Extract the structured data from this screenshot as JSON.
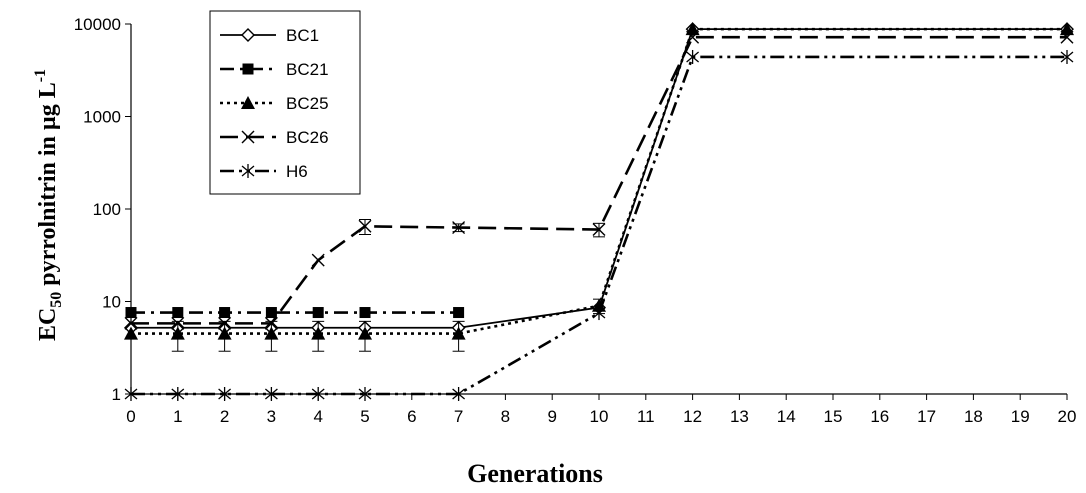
{
  "chart_data": {
    "type": "line",
    "xlabel": "Generations",
    "ylabel": {
      "main_pre": "EC",
      "sub": "50",
      "main_post": " pyrrolnitrin in µg  L",
      "sup": "-1"
    },
    "x_ticks": [
      "0",
      "1",
      "2",
      "3",
      "4",
      "5",
      "6",
      "7",
      "8",
      "9",
      "10",
      "11",
      "12",
      "13",
      "14",
      "15",
      "16",
      "17",
      "18",
      "19",
      "20"
    ],
    "y_scale": "log",
    "ylim": [
      1,
      10000
    ],
    "y_ticks": [
      "1",
      "10",
      "100",
      "1000",
      "10000"
    ],
    "grid": false,
    "legend_position": "top-left",
    "series": [
      {
        "name": "BC1",
        "marker": "diamond-open",
        "dash": "solid",
        "points": [
          {
            "x": 0,
            "y": 5.2
          },
          {
            "x": 1,
            "y": 5.2
          },
          {
            "x": 2,
            "y": 5.2
          },
          {
            "x": 3,
            "y": 5.2
          },
          {
            "x": 4,
            "y": 5.2
          },
          {
            "x": 5,
            "y": 5.2
          },
          {
            "x": 7,
            "y": 5.2
          },
          {
            "x": 10,
            "y": 8.6
          },
          {
            "x": 12,
            "y": 8800
          },
          {
            "x": 20,
            "y": 8800
          }
        ]
      },
      {
        "name": "BC21",
        "marker": "square",
        "dash": "dash-dot",
        "points": [
          {
            "x": 0,
            "y": 7.6
          },
          {
            "x": 1,
            "y": 7.6
          },
          {
            "x": 2,
            "y": 7.6
          },
          {
            "x": 3,
            "y": 7.6
          },
          {
            "x": 4,
            "y": 7.6
          },
          {
            "x": 5,
            "y": 7.6
          },
          {
            "x": 7,
            "y": 7.6
          }
        ]
      },
      {
        "name": "BC25",
        "marker": "triangle",
        "dash": "dotted",
        "error_y": [
          0,
          1.6,
          1.6,
          1.6,
          1.6,
          1.6,
          1.6,
          1.6,
          0,
          0
        ],
        "points": [
          {
            "x": 0,
            "y": 4.5
          },
          {
            "x": 1,
            "y": 4.5
          },
          {
            "x": 2,
            "y": 4.5
          },
          {
            "x": 3,
            "y": 4.5
          },
          {
            "x": 4,
            "y": 4.5
          },
          {
            "x": 5,
            "y": 4.5
          },
          {
            "x": 7,
            "y": 4.5
          },
          {
            "x": 10,
            "y": 9.0
          },
          {
            "x": 12,
            "y": 8800
          },
          {
            "x": 20,
            "y": 8800
          }
        ]
      },
      {
        "name": "BC26",
        "marker": "x",
        "dash": "long-dash",
        "error_y": [
          0,
          0,
          0,
          0,
          0,
          12,
          6,
          10,
          0,
          0
        ],
        "points": [
          {
            "x": 0,
            "y": 5.8
          },
          {
            "x": 1,
            "y": 5.8
          },
          {
            "x": 2,
            "y": 5.8
          },
          {
            "x": 3,
            "y": 5.8
          },
          {
            "x": 4,
            "y": 28
          },
          {
            "x": 5,
            "y": 65
          },
          {
            "x": 7,
            "y": 63
          },
          {
            "x": 10,
            "y": 60
          },
          {
            "x": 12,
            "y": 7200
          },
          {
            "x": 20,
            "y": 7200
          }
        ]
      },
      {
        "name": "H6",
        "marker": "asterisk",
        "dash": "dash-dot-dot",
        "points": [
          {
            "x": 0,
            "y": 1
          },
          {
            "x": 1,
            "y": 1
          },
          {
            "x": 2,
            "y": 1
          },
          {
            "x": 3,
            "y": 1
          },
          {
            "x": 4,
            "y": 1
          },
          {
            "x": 5,
            "y": 1
          },
          {
            "x": 7,
            "y": 1
          },
          {
            "x": 10,
            "y": 7.5
          },
          {
            "x": 12,
            "y": 4400
          },
          {
            "x": 20,
            "y": 4400
          }
        ]
      }
    ]
  }
}
